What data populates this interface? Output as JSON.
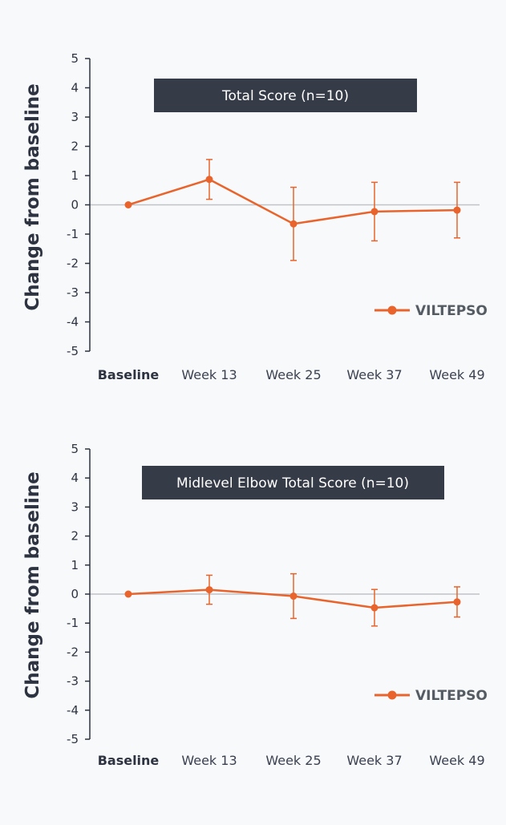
{
  "colors": {
    "series": "#e8642c",
    "axis": "#2d3340",
    "zero_line": "#bfc3c8",
    "title_box": "#363b48",
    "background": "#f8f9fa"
  },
  "chart_data": [
    {
      "type": "line",
      "title": "Total Score (n=10)",
      "ylabel": "Change from baseline",
      "ylim": [
        -5,
        5
      ],
      "yticks": [
        5,
        4,
        3,
        2,
        1,
        0,
        -1,
        -2,
        -3,
        -4,
        -5
      ],
      "categories": [
        "Baseline",
        "Week 13",
        "Week 25",
        "Week 37",
        "Week 49"
      ],
      "series": [
        {
          "name": "VILTEPSO",
          "values": [
            0,
            0.87,
            -0.65,
            -0.23,
            -0.18
          ],
          "error": [
            0,
            0.68,
            1.25,
            1.0,
            0.95
          ]
        }
      ],
      "grid": false,
      "legend": "right"
    },
    {
      "type": "line",
      "title": "Midlevel Elbow Total Score (n=10)",
      "ylabel": "Change from baseline",
      "ylim": [
        -5,
        5
      ],
      "yticks": [
        5,
        4,
        3,
        2,
        1,
        0,
        -1,
        -2,
        -3,
        -4,
        -5
      ],
      "categories": [
        "Baseline",
        "Week 13",
        "Week 25",
        "Week 37",
        "Week 49"
      ],
      "series": [
        {
          "name": "VILTEPSO",
          "values": [
            0,
            0.15,
            -0.07,
            -0.47,
            -0.27
          ],
          "error": [
            0,
            0.5,
            0.77,
            0.63,
            0.52
          ]
        }
      ],
      "grid": false,
      "legend": "right"
    }
  ]
}
